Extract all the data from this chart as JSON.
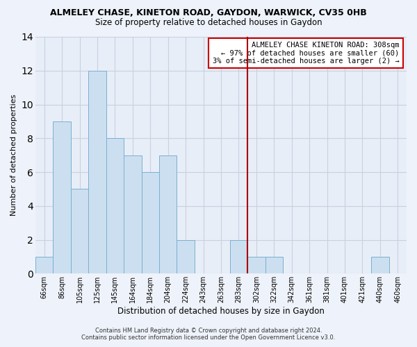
{
  "title": "ALMELEY CHASE, KINETON ROAD, GAYDON, WARWICK, CV35 0HB",
  "subtitle": "Size of property relative to detached houses in Gaydon",
  "xlabel": "Distribution of detached houses by size in Gaydon",
  "ylabel": "Number of detached properties",
  "categories": [
    "66sqm",
    "86sqm",
    "105sqm",
    "125sqm",
    "145sqm",
    "164sqm",
    "184sqm",
    "204sqm",
    "224sqm",
    "243sqm",
    "263sqm",
    "283sqm",
    "302sqm",
    "322sqm",
    "342sqm",
    "361sqm",
    "381sqm",
    "401sqm",
    "421sqm",
    "440sqm",
    "460sqm"
  ],
  "values": [
    1,
    9,
    5,
    12,
    8,
    7,
    6,
    7,
    2,
    0,
    0,
    2,
    1,
    1,
    0,
    0,
    0,
    0,
    0,
    1,
    0
  ],
  "bar_color": "#ccdff0",
  "bar_edge_color": "#7ab0d0",
  "vline_x_index": 12,
  "vline_color": "#aa0000",
  "ylim": [
    0,
    14
  ],
  "yticks": [
    0,
    2,
    4,
    6,
    8,
    10,
    12,
    14
  ],
  "annotation_text": "ALMELEY CHASE KINETON ROAD: 308sqm\n← 97% of detached houses are smaller (60)\n3% of semi-detached houses are larger (2) →",
  "footer_line1": "Contains HM Land Registry data © Crown copyright and database right 2024.",
  "footer_line2": "Contains public sector information licensed under the Open Government Licence v3.0.",
  "background_color": "#eef2fa",
  "plot_bg_color": "#e8eef8",
  "grid_color": "#c8d0e0"
}
